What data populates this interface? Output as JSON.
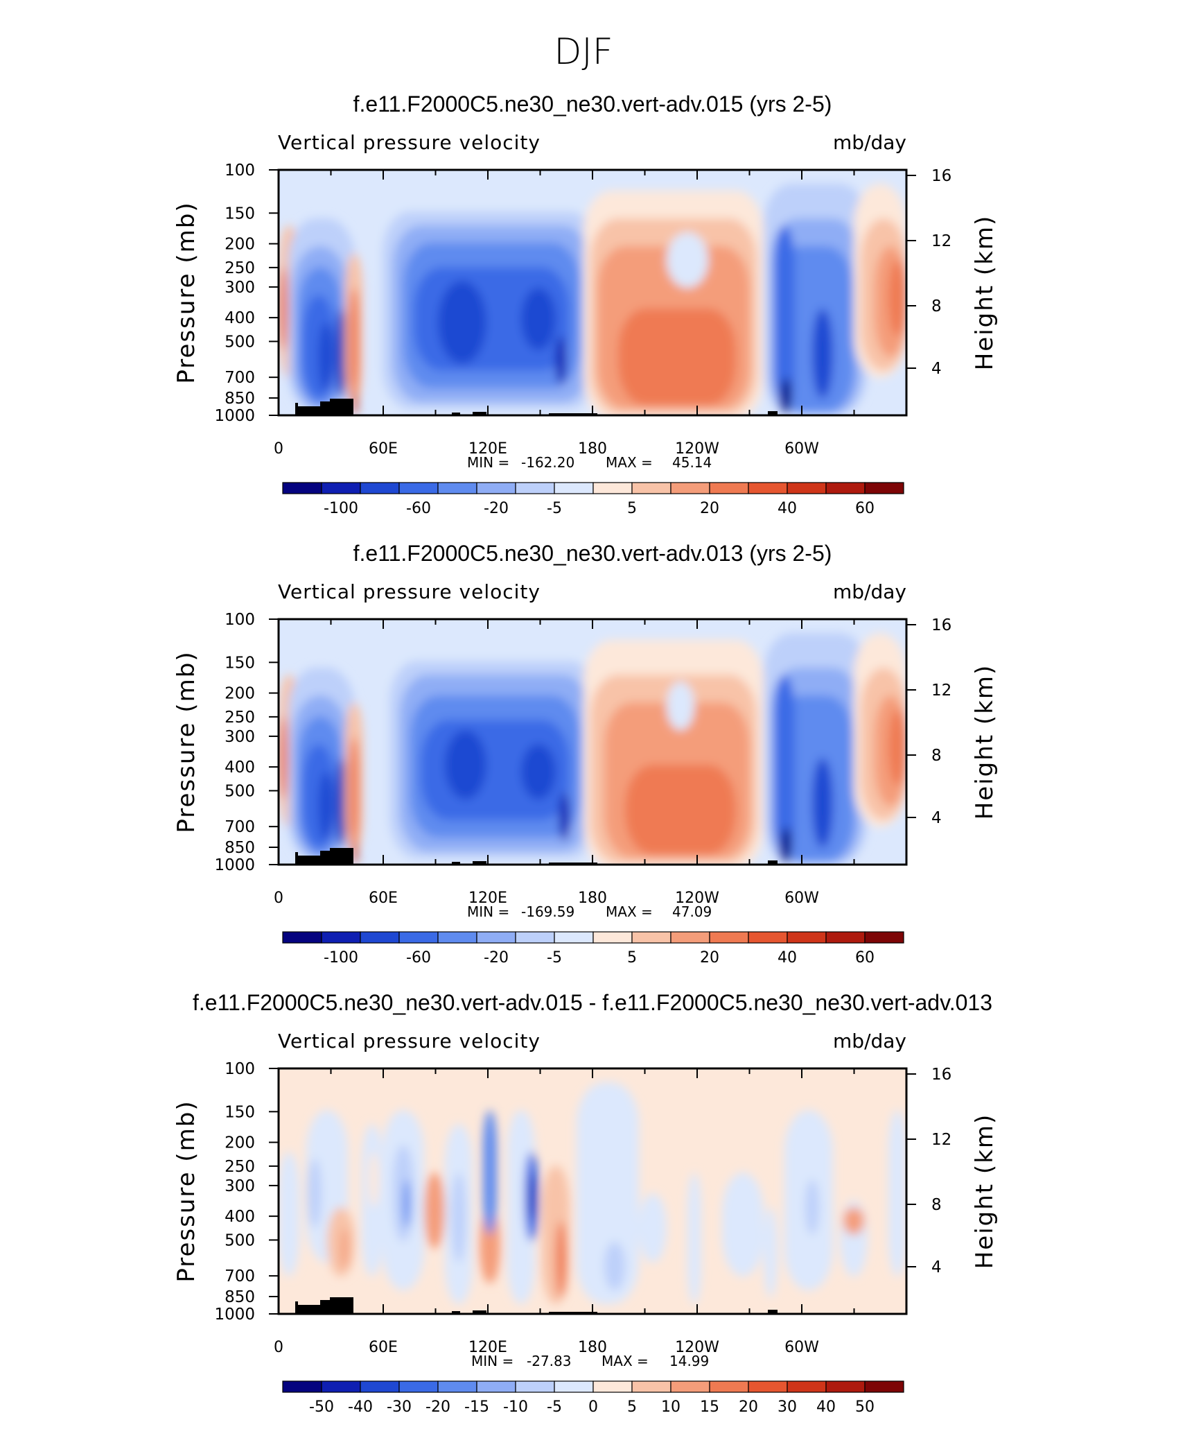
{
  "figure": {
    "title": "DJF"
  },
  "chart_data": [
    {
      "type": "heatmap",
      "panel_title": "f.e11.F2000C5.ne30_ne30.vert-adv.015 (yrs 2-5)",
      "left_label": "Vertical pressure velocity",
      "right_label": "mb/day",
      "ylabel": "Pressure (mb)",
      "ylabel_right": "Height (km)",
      "x_ticks": [
        "0",
        "60E",
        "120E",
        "180",
        "120W",
        "60W"
      ],
      "y_ticks": [
        "100",
        "150",
        "200",
        "250",
        "300",
        "400",
        "500",
        "700",
        "850",
        "1000"
      ],
      "y_right_ticks": [
        "16",
        "12",
        "8",
        "4"
      ],
      "stats": {
        "min_label": "MIN =",
        "min": "-162.20",
        "max_label": "MAX =",
        "max": "45.14"
      },
      "colorbar": {
        "labels": [
          "-100",
          "-60",
          "-20",
          "-5",
          "5",
          "20",
          "40",
          "60"
        ],
        "colors": [
          "#05037f",
          "#0f1fb2",
          "#1f48d2",
          "#3a6ae6",
          "#5f8bef",
          "#8fadf5",
          "#bdd0fa",
          "#dce8fd",
          "#fde8da",
          "#f8c3a8",
          "#f49d7a",
          "#ef7a52",
          "#e65630",
          "#cf3519",
          "#ae1a0e",
          "#7d0506"
        ]
      }
    },
    {
      "type": "heatmap",
      "panel_title": "f.e11.F2000C5.ne30_ne30.vert-adv.013 (yrs 2-5)",
      "left_label": "Vertical pressure velocity",
      "right_label": "mb/day",
      "ylabel": "Pressure (mb)",
      "ylabel_right": "Height (km)",
      "x_ticks": [
        "0",
        "60E",
        "120E",
        "180",
        "120W",
        "60W"
      ],
      "y_ticks": [
        "100",
        "150",
        "200",
        "250",
        "300",
        "400",
        "500",
        "700",
        "850",
        "1000"
      ],
      "y_right_ticks": [
        "16",
        "12",
        "8",
        "4"
      ],
      "stats": {
        "min_label": "MIN =",
        "min": "-169.59",
        "max_label": "MAX =",
        "max": "47.09"
      },
      "colorbar": {
        "labels": [
          "-100",
          "-60",
          "-20",
          "-5",
          "5",
          "20",
          "40",
          "60"
        ],
        "colors": [
          "#05037f",
          "#0f1fb2",
          "#1f48d2",
          "#3a6ae6",
          "#5f8bef",
          "#8fadf5",
          "#bdd0fa",
          "#dce8fd",
          "#fde8da",
          "#f8c3a8",
          "#f49d7a",
          "#ef7a52",
          "#e65630",
          "#cf3519",
          "#ae1a0e",
          "#7d0506"
        ]
      }
    },
    {
      "type": "heatmap",
      "panel_title": "f.e11.F2000C5.ne30_ne30.vert-adv.015 - f.e11.F2000C5.ne30_ne30.vert-adv.013",
      "left_label": "Vertical pressure velocity",
      "right_label": "mb/day",
      "ylabel": "Pressure (mb)",
      "ylabel_right": "Height (km)",
      "x_ticks": [
        "0",
        "60E",
        "120E",
        "180",
        "120W",
        "60W"
      ],
      "y_ticks": [
        "100",
        "150",
        "200",
        "250",
        "300",
        "400",
        "500",
        "700",
        "850",
        "1000"
      ],
      "y_right_ticks": [
        "16",
        "12",
        "8",
        "4"
      ],
      "stats": {
        "min_label": "MIN =",
        "min": "-27.83",
        "max_label": "MAX =",
        "max": "14.99"
      },
      "colorbar": {
        "labels": [
          "-50",
          "-40",
          "-30",
          "-20",
          "-15",
          "-10",
          "-5",
          "0",
          "5",
          "10",
          "15",
          "20",
          "30",
          "40",
          "50"
        ],
        "colors": [
          "#05037f",
          "#0f1fb2",
          "#1f48d2",
          "#3a6ae6",
          "#5f8bef",
          "#8fadf5",
          "#bdd0fa",
          "#dce8fd",
          "#fde8da",
          "#f8c3a8",
          "#f49d7a",
          "#ef7a52",
          "#e65630",
          "#cf3519",
          "#ae1a0e",
          "#7d0506"
        ]
      }
    }
  ]
}
